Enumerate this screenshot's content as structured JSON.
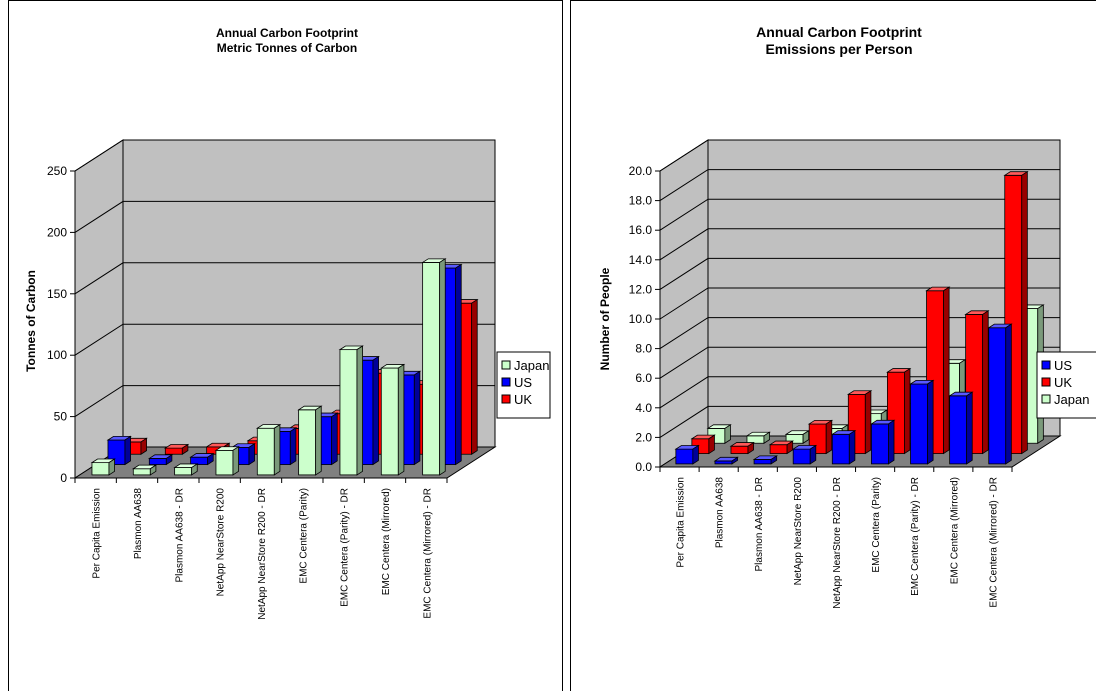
{
  "chart_data": [
    {
      "type": "bar",
      "title": "Annual Carbon Footprint",
      "subtitle": "Metric Tonnes of Carbon",
      "ylabel": "Tonnes of Carbon",
      "xlabel": "",
      "ylim": [
        0,
        250
      ],
      "yticks": [
        "0",
        "50",
        "100",
        "150",
        "200",
        "250"
      ],
      "grid": true,
      "three_d": true,
      "legend_position": "right",
      "categories": [
        "Per Capita Emission",
        "Plasmon AA638",
        "Plasmon AA638 - DR",
        "NetApp NearStore R200",
        "NetApp NearStore R200 - DR",
        "EMC Centera (Parity)",
        "EMC Centera (Parity) - DR",
        "EMC Centera (Mirrored)",
        "EMC Centera (Mirrored) - DR"
      ],
      "series": [
        {
          "name": "Japan",
          "color": "#ccffcc",
          "values": [
            10,
            5,
            6,
            20,
            38,
            53,
            102,
            87,
            173
          ]
        },
        {
          "name": "US",
          "color": "#0000ff",
          "values": [
            20,
            5,
            6,
            14,
            27,
            39,
            85,
            73,
            160
          ]
        },
        {
          "name": "UK",
          "color": "#ff0000",
          "values": [
            10,
            5,
            6,
            11,
            21,
            33,
            66,
            57,
            123
          ]
        }
      ]
    },
    {
      "type": "bar",
      "title": "Annual Carbon Footprint",
      "subtitle": "Emissions per Person",
      "ylabel": "Number of People",
      "xlabel": "",
      "ylim": [
        0,
        20
      ],
      "yticks": [
        "0.0",
        "2.0",
        "4.0",
        "6.0",
        "8.0",
        "10.0",
        "12.0",
        "14.0",
        "16.0",
        "18.0",
        "20.0"
      ],
      "grid": true,
      "three_d": true,
      "legend_position": "right",
      "categories": [
        "Per Capita Emission",
        "Plasmon AA638",
        "Plasmon AA638 - DR",
        "NetApp NearStore R200",
        "NetApp NearStore R200 - DR",
        "EMC Centera (Parity)",
        "EMC Centera (Parity) - DR",
        "EMC Centera (Mirrored)",
        "EMC Centera (Mirrored) - DR"
      ],
      "series": [
        {
          "name": "US",
          "color": "#0000ff",
          "values": [
            1.0,
            0.2,
            0.3,
            1.0,
            2.0,
            2.7,
            5.4,
            4.6,
            9.2
          ]
        },
        {
          "name": "UK",
          "color": "#ff0000",
          "values": [
            1.0,
            0.5,
            0.6,
            2.0,
            4.0,
            5.5,
            11.0,
            9.4,
            18.8
          ]
        },
        {
          "name": "Japan",
          "color": "#ccffcc",
          "values": [
            1.0,
            0.5,
            0.6,
            1.0,
            2.0,
            2.7,
            5.4,
            4.6,
            9.1
          ]
        }
      ]
    }
  ]
}
